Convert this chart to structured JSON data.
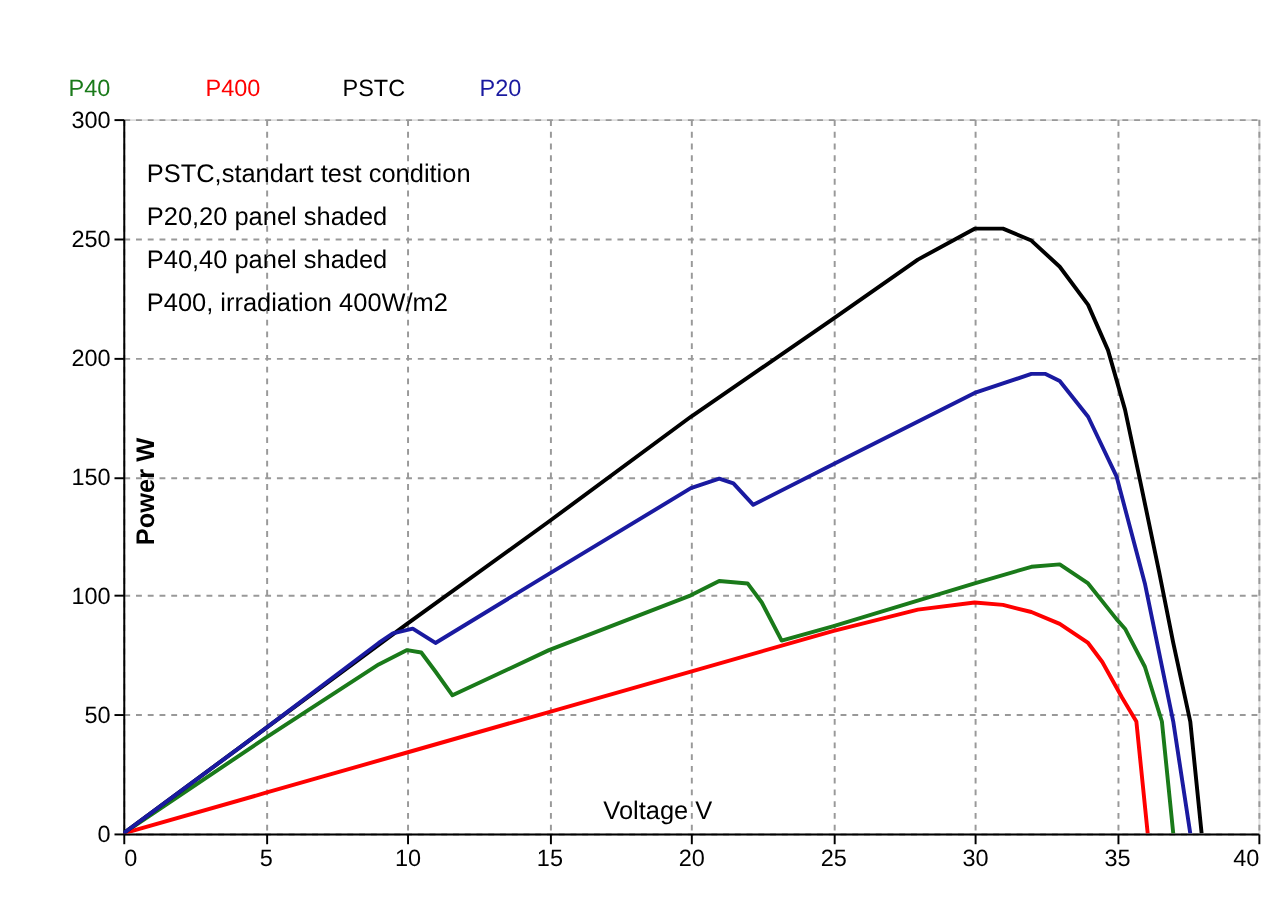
{
  "chart_data": {
    "type": "line",
    "xlabel": "Voltage V",
    "ylabel": "Power W",
    "xlim": [
      0,
      40
    ],
    "ylim": [
      0,
      300
    ],
    "xticks": [
      0,
      5,
      10,
      15,
      20,
      25,
      30,
      35,
      40
    ],
    "yticks": [
      0,
      50,
      100,
      150,
      200,
      250,
      300
    ],
    "grid": true,
    "legend": "top left",
    "marker": "none",
    "line_style": "solid",
    "annotations": [
      "PSTC,standart test condition",
      "P20,20 panel shaded",
      "P40,40 panel shaded",
      "P400, irradiation 400W/m2"
    ],
    "series": [
      {
        "name": "P40",
        "color": "#1a7a1a",
        "x": [
          0,
          5,
          9,
          10,
          10.5,
          11,
          11.6,
          15,
          20,
          21,
          22,
          22.5,
          23.2,
          25,
          30,
          32,
          33,
          34,
          35,
          35.3,
          36,
          36.6,
          37
        ],
        "values": [
          0,
          40,
          71,
          77,
          76,
          68,
          58,
          77,
          100,
          106,
          105,
          97,
          81,
          87,
          105,
          112,
          113,
          105,
          90,
          86,
          70,
          47,
          0
        ]
      },
      {
        "name": "P400",
        "color": "#ff0000",
        "x": [
          0,
          5,
          10,
          15,
          20,
          25,
          28,
          30,
          31,
          32,
          33,
          34,
          34.5,
          35.2,
          35.7,
          36.1
        ],
        "values": [
          0,
          17,
          34,
          51,
          68,
          85,
          94,
          97,
          96,
          93,
          88,
          80,
          72,
          57,
          47,
          0
        ]
      },
      {
        "name": "PSTC",
        "color": "#000000",
        "x": [
          0,
          5,
          10,
          15,
          20,
          25,
          28,
          30,
          31,
          32,
          33,
          34,
          34.7,
          35.3,
          35.8,
          36.5,
          37,
          37.6,
          38
        ],
        "values": [
          0,
          44,
          88,
          131,
          175,
          216,
          241,
          254,
          254,
          249,
          238,
          222,
          203,
          178,
          150,
          110,
          80,
          47,
          0
        ]
      },
      {
        "name": "P20",
        "color": "#1a1aa0",
        "x": [
          0,
          5,
          9,
          9.5,
          10.2,
          11,
          15,
          20,
          21,
          21.5,
          22.2,
          25,
          30,
          31,
          32,
          32.5,
          33,
          34,
          35,
          36,
          37,
          37.6
        ],
        "values": [
          0,
          44,
          80,
          84,
          86,
          80,
          109,
          145,
          149,
          147,
          138,
          155,
          185,
          189,
          193,
          193,
          190,
          175,
          150,
          105,
          47,
          0
        ]
      }
    ]
  }
}
